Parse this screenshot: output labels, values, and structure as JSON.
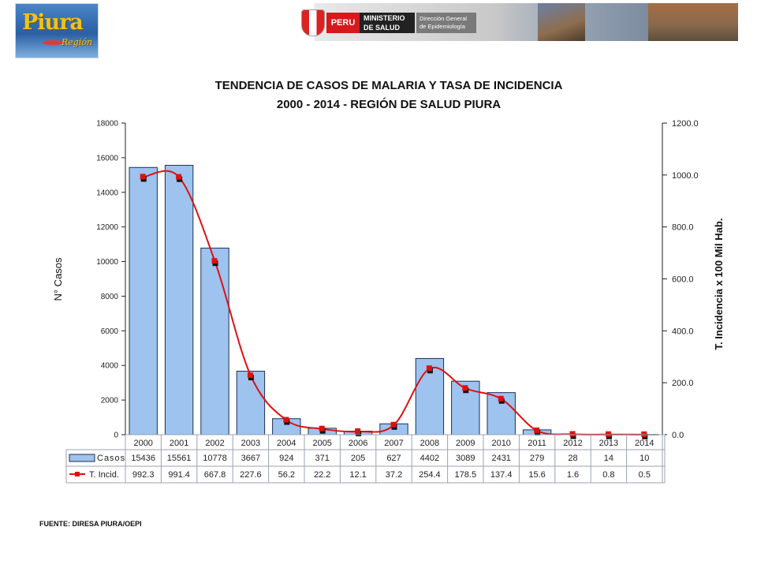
{
  "header": {
    "logo_left": {
      "name": "Piura",
      "subtitle": "Región"
    },
    "banner": {
      "country": "PERU",
      "ministry": [
        "MINISTERIO",
        "DE SALUD"
      ],
      "office": [
        "Dirección General",
        "de Epidemiología"
      ]
    }
  },
  "chart_data": {
    "type": "bar+line",
    "title": "TENDENCIA DE CASOS DE MALARIA Y TASA DE INCIDENCIA",
    "subtitle": "2000 - 2014 - REGIÓN DE SALUD PIURA",
    "categories": [
      "2000",
      "2001",
      "2002",
      "2003",
      "2004",
      "2005",
      "2006",
      "2007",
      "2008",
      "2009",
      "2010",
      "2011",
      "2012",
      "2013",
      "2014"
    ],
    "series": [
      {
        "name": "Casos",
        "type": "bar",
        "axis": "left",
        "values": [
          15436,
          15561,
          10778,
          3667,
          924,
          371,
          205,
          627,
          4402,
          3089,
          2431,
          279,
          28,
          14,
          10
        ]
      },
      {
        "name": "T. Incid.",
        "type": "line",
        "axis": "right",
        "values": [
          992.3,
          991.4,
          667.8,
          227.6,
          56.2,
          22.2,
          12.1,
          37.2,
          254.4,
          178.5,
          137.4,
          15.6,
          1.6,
          0.8,
          0.5
        ]
      }
    ],
    "ylabel_left": "N° Casos",
    "ylabel_right": "T. Incidencia x 100 Mil Hab.",
    "ylim_left": [
      0,
      18000
    ],
    "ylim_right": [
      0,
      1200
    ],
    "yticks_left": [
      "0",
      "2000",
      "4000",
      "6000",
      "8000",
      "10000",
      "12000",
      "14000",
      "16000",
      "18000"
    ],
    "yticks_right": [
      "0.0",
      "200.0",
      "400.0",
      "600.0",
      "800.0",
      "1000.0",
      "1200.0"
    ],
    "data_table_labels": [
      "2000",
      "2001",
      "2002",
      "2003",
      "2004",
      "2005",
      "2006",
      "2007",
      "2008",
      "2009",
      "2010",
      "2011",
      "2012",
      "2013",
      "2014"
    ],
    "data_table_rows": [
      {
        "label": "Casos",
        "cells": [
          "15436",
          "15561",
          "10778",
          "3667",
          "924",
          "371",
          "205",
          "627",
          "4402",
          "3089",
          "2431",
          "279",
          "28",
          "14",
          "10"
        ]
      },
      {
        "label": "T. Incid.",
        "cells": [
          "992.3",
          "991.4",
          "667.8",
          "227.6",
          "56.2",
          "22.2",
          "12.1",
          "37.2",
          "254.4",
          "178.5",
          "137.4",
          "15.6",
          "1.6",
          "0.8",
          "0.5"
        ]
      }
    ],
    "colors": {
      "bar_fill": "#9dc3ee",
      "bar_stroke": "#1f2f55",
      "line": "#e01010",
      "marker": "#e01010"
    },
    "grid": false,
    "legend": "data-table"
  },
  "footer": {
    "source": "FUENTE: DIRESA PIURA/OEPI"
  }
}
